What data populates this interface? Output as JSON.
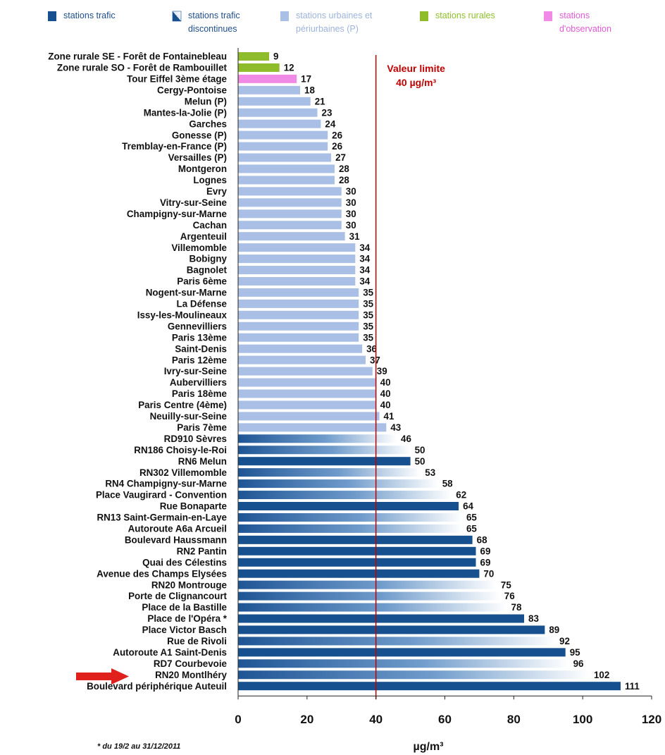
{
  "chart_data": {
    "type": "bar",
    "orientation": "horizontal",
    "legend_position": "top",
    "grid": false,
    "xlabel": "µg/m³",
    "xlim": [
      0,
      120
    ],
    "xticks": [
      "0",
      "20",
      "40",
      "60",
      "80",
      "100",
      "120"
    ],
    "reference_line": {
      "value": 40,
      "label_line1": "Valeur limite",
      "label_line2": "40 µg/m³",
      "color": "#c00000"
    },
    "footnote": "* du 19/2 au 31/12/2011",
    "legend": [
      {
        "key": "trafic",
        "label_line1": "stations trafic",
        "label_line2": "",
        "text_color": "#1f4e8c",
        "color": "#17508f"
      },
      {
        "key": "trafic_discontinues",
        "label_line1": "stations trafic",
        "label_line2": "discontinues",
        "text_color": "#1f4e8c",
        "color": "#17508f"
      },
      {
        "key": "urbaines",
        "label_line1": "stations urbaines et",
        "label_line2": "périurbaines (P)",
        "text_color": "#9db3dc",
        "color": "#a9bfe6"
      },
      {
        "key": "rurales",
        "label_line1": "stations rurales",
        "label_line2": "",
        "text_color": "#8fbf2a",
        "color": "#8fbc2b"
      },
      {
        "key": "observation",
        "label_line1": "stations",
        "label_line2": "d'observation",
        "text_color": "#e35ad8",
        "color": "#f08ae6"
      }
    ],
    "bars": [
      {
        "label": "Zone rurale SE - Forêt de Fontainebleau",
        "value": 9,
        "type": "rurales"
      },
      {
        "label": "Zone rurale SO - Forêt de Rambouillet",
        "value": 12,
        "type": "rurales"
      },
      {
        "label": "Tour Eiffel 3ème étage",
        "value": 17,
        "type": "observation"
      },
      {
        "label": "Cergy-Pontoise",
        "value": 18,
        "type": "urbaines"
      },
      {
        "label": "Melun (P)",
        "value": 21,
        "type": "urbaines"
      },
      {
        "label": "Mantes-la-Jolie (P)",
        "value": 23,
        "type": "urbaines"
      },
      {
        "label": "Garches",
        "value": 24,
        "type": "urbaines"
      },
      {
        "label": "Gonesse (P)",
        "value": 26,
        "type": "urbaines"
      },
      {
        "label": "Tremblay-en-France (P)",
        "value": 26,
        "type": "urbaines"
      },
      {
        "label": "Versailles (P)",
        "value": 27,
        "type": "urbaines"
      },
      {
        "label": "Montgeron",
        "value": 28,
        "type": "urbaines"
      },
      {
        "label": "Lognes",
        "value": 28,
        "type": "urbaines"
      },
      {
        "label": "Evry",
        "value": 30,
        "type": "urbaines"
      },
      {
        "label": "Vitry-sur-Seine",
        "value": 30,
        "type": "urbaines"
      },
      {
        "label": "Champigny-sur-Marne",
        "value": 30,
        "type": "urbaines"
      },
      {
        "label": "Cachan",
        "value": 30,
        "type": "urbaines"
      },
      {
        "label": "Argenteuil",
        "value": 31,
        "type": "urbaines"
      },
      {
        "label": "Villemomble",
        "value": 34,
        "type": "urbaines"
      },
      {
        "label": "Bobigny",
        "value": 34,
        "type": "urbaines"
      },
      {
        "label": "Bagnolet",
        "value": 34,
        "type": "urbaines"
      },
      {
        "label": "Paris 6ème",
        "value": 34,
        "type": "urbaines"
      },
      {
        "label": "Nogent-sur-Marne",
        "value": 35,
        "type": "urbaines"
      },
      {
        "label": "La Défense",
        "value": 35,
        "type": "urbaines"
      },
      {
        "label": "Issy-les-Moulineaux",
        "value": 35,
        "type": "urbaines"
      },
      {
        "label": "Gennevilliers",
        "value": 35,
        "type": "urbaines"
      },
      {
        "label": "Paris 13ème",
        "value": 35,
        "type": "urbaines"
      },
      {
        "label": "Saint-Denis",
        "value": 36,
        "type": "urbaines"
      },
      {
        "label": "Paris 12ème",
        "value": 37,
        "type": "urbaines"
      },
      {
        "label": "Ivry-sur-Seine",
        "value": 39,
        "type": "urbaines"
      },
      {
        "label": "Aubervilliers",
        "value": 40,
        "type": "urbaines"
      },
      {
        "label": "Paris 18ème",
        "value": 40,
        "type": "urbaines"
      },
      {
        "label": "Paris Centre (4ème)",
        "value": 40,
        "type": "urbaines"
      },
      {
        "label": "Neuilly-sur-Seine",
        "value": 41,
        "type": "urbaines"
      },
      {
        "label": "Paris 7ème",
        "value": 43,
        "type": "urbaines"
      },
      {
        "label": "RD910 Sèvres",
        "value": 46,
        "type": "trafic_discontinues"
      },
      {
        "label": "RN186 Choisy-le-Roi",
        "value": 50,
        "type": "trafic_discontinues"
      },
      {
        "label": "RN6 Melun",
        "value": 50,
        "type": "trafic"
      },
      {
        "label": "RN302 Villemomble",
        "value": 53,
        "type": "trafic_discontinues"
      },
      {
        "label": "RN4 Champigny-sur-Marne",
        "value": 58,
        "type": "trafic_discontinues"
      },
      {
        "label": "Place Vaugirard - Convention",
        "value": 62,
        "type": "trafic_discontinues"
      },
      {
        "label": "Rue Bonaparte",
        "value": 64,
        "type": "trafic"
      },
      {
        "label": "RN13 Saint-Germain-en-Laye",
        "value": 65,
        "type": "trafic_discontinues"
      },
      {
        "label": "Autoroute A6a Arcueil",
        "value": 65,
        "type": "trafic_discontinues"
      },
      {
        "label": "Boulevard Haussmann",
        "value": 68,
        "type": "trafic"
      },
      {
        "label": "RN2 Pantin",
        "value": 69,
        "type": "trafic"
      },
      {
        "label": "Quai des Célestins",
        "value": 69,
        "type": "trafic"
      },
      {
        "label": "Avenue des Champs Elysées",
        "value": 70,
        "type": "trafic"
      },
      {
        "label": "RN20 Montrouge",
        "value": 75,
        "type": "trafic_discontinues"
      },
      {
        "label": "Porte de Clignancourt",
        "value": 76,
        "type": "trafic_discontinues"
      },
      {
        "label": "Place de la Bastille",
        "value": 78,
        "type": "trafic_discontinues"
      },
      {
        "label": "Place de l'Opéra *",
        "value": 83,
        "type": "trafic"
      },
      {
        "label": "Place Victor Basch",
        "value": 89,
        "type": "trafic"
      },
      {
        "label": "Rue de Rivoli",
        "value": 92,
        "type": "trafic_discontinues"
      },
      {
        "label": "Autoroute A1 Saint-Denis",
        "value": 95,
        "type": "trafic"
      },
      {
        "label": "RD7 Courbevoie",
        "value": 96,
        "type": "trafic_discontinues"
      },
      {
        "label": "RN20 Montlhéry",
        "value": 102,
        "type": "trafic_discontinues",
        "highlight": "red-arrow"
      },
      {
        "label": "Boulevard périphérique Auteuil",
        "value": 111,
        "type": "trafic"
      }
    ]
  }
}
